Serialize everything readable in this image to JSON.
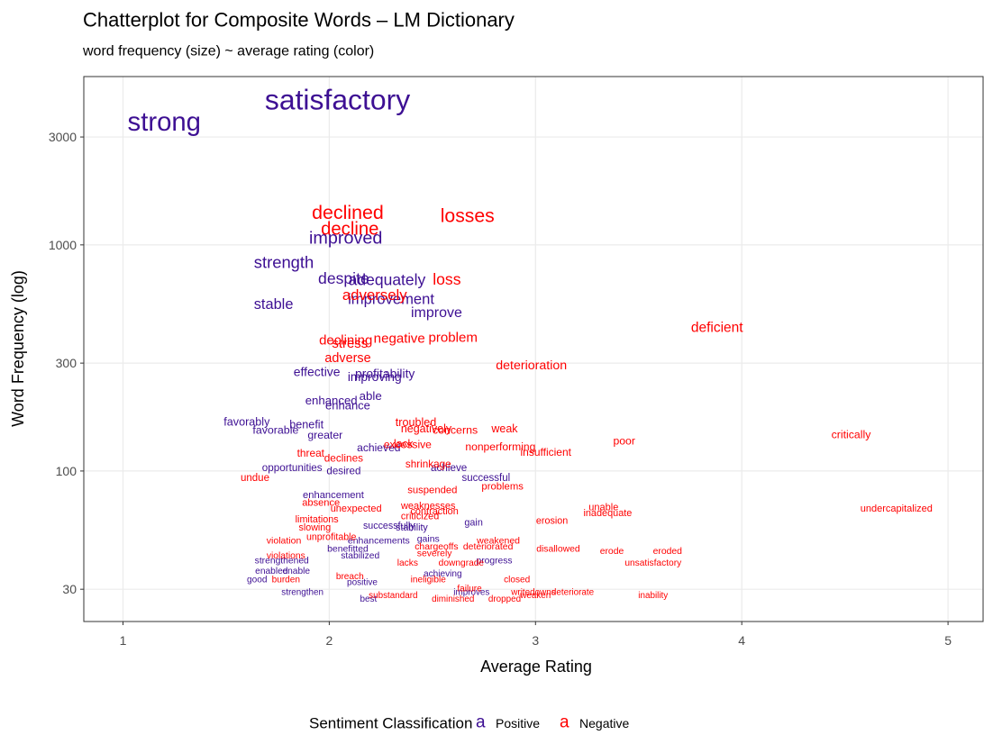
{
  "chart_data": {
    "type": "text-scatter",
    "title": "Chatterplot for Composite Words – LM Dictionary",
    "subtitle": "word frequency (size) ~ average rating (color)",
    "x_label": "Average Rating",
    "y_label": "Word Frequency (log)",
    "legend_title": "Sentiment Classification",
    "legend_symbol": "a",
    "legend_position": "bottom",
    "xlim": [
      0.81,
      5.17
    ],
    "xticks": [
      1,
      2,
      3,
      4,
      5
    ],
    "ylim": [
      21.6,
      5550
    ],
    "yticks": [
      30,
      100,
      300,
      1000,
      3000
    ],
    "log_y": true,
    "grid": true,
    "series": [
      {
        "name": "Positive",
        "color": "#3d0f93",
        "words": [
          "strong",
          "satisfactory",
          "improved",
          "strength",
          "despite",
          "adequately",
          "improvement",
          "stable",
          "improve",
          "effective",
          "profitability",
          "improving",
          "able",
          "enhanced",
          "enhance",
          "favorably",
          "benefit",
          "favorable",
          "greater",
          "achieved",
          "opportunities",
          "desired",
          "achieve",
          "successful",
          "enhancement",
          "successfully",
          "gain",
          "stability",
          "gains",
          "enhancements",
          "benefitted",
          "stabilized",
          "strengthened",
          "progress",
          "enabled",
          "enable",
          "achieving",
          "good",
          "positive",
          "strengthen",
          "improves",
          "best"
        ],
        "x": [
          1.2,
          2.04,
          2.08,
          1.78,
          2.07,
          2.28,
          2.3,
          1.73,
          2.52,
          1.94,
          2.27,
          2.22,
          2.2,
          2.01,
          2.09,
          1.6,
          1.89,
          1.74,
          1.98,
          2.24,
          1.82,
          2.07,
          2.58,
          2.76,
          2.02,
          2.29,
          2.7,
          2.4,
          2.48,
          2.24,
          2.09,
          2.15,
          1.77,
          2.8,
          1.72,
          1.84,
          2.55,
          1.65,
          2.16,
          1.87,
          2.69,
          2.19
        ],
        "values": [
          3500,
          4400,
          1070,
          840,
          710,
          700,
          575,
          545,
          500,
          275,
          270,
          260,
          215,
          205,
          195,
          165,
          160,
          152,
          144,
          127,
          103,
          100,
          103,
          93,
          78,
          57,
          59,
          56,
          50,
          49,
          45,
          42,
          40,
          40,
          36,
          36,
          35,
          33,
          32,
          29,
          29,
          27
        ]
      },
      {
        "name": "Negative",
        "color": "#ff0000",
        "words": [
          "declined",
          "decline",
          "losses",
          "loss",
          "adversely",
          "deficient",
          "declining",
          "negative",
          "problem",
          "stress",
          "adverse",
          "deterioration",
          "troubled",
          "negatively",
          "concerns",
          "weak",
          "critically",
          "poor",
          "lack",
          "excessive",
          "nonperforming",
          "insufficient",
          "threat",
          "declines",
          "shrinkage",
          "undue",
          "problems",
          "suspended",
          "absence",
          "weaknesses",
          "unable",
          "inadequate",
          "undercapitalized",
          "unexpected",
          "contraction",
          "criticized",
          "limitations",
          "erosion",
          "slowing",
          "unprofitable",
          "weakened",
          "violation",
          "chargeoffs",
          "deteriorated",
          "disallowed",
          "erode",
          "eroded",
          "severely",
          "violations",
          "lacks",
          "downgrade",
          "unsatisfactory",
          "breach",
          "burden",
          "closed",
          "ineligible",
          "failure",
          "substandard",
          "writedowns",
          "weaken",
          "deteriorate",
          "inability",
          "diminished",
          "dropped"
        ],
        "x": [
          2.09,
          2.1,
          2.67,
          2.57,
          2.22,
          3.88,
          2.08,
          2.34,
          2.6,
          2.1,
          2.09,
          2.98,
          2.42,
          2.47,
          2.61,
          2.85,
          4.53,
          3.43,
          2.36,
          2.38,
          2.83,
          3.05,
          1.91,
          2.07,
          2.48,
          1.64,
          2.84,
          2.5,
          1.96,
          2.48,
          3.33,
          3.35,
          4.75,
          2.13,
          2.51,
          2.44,
          1.94,
          3.08,
          1.93,
          2.01,
          2.82,
          1.78,
          2.52,
          2.77,
          3.11,
          3.37,
          3.64,
          2.51,
          1.79,
          2.38,
          2.64,
          3.57,
          2.1,
          1.79,
          2.91,
          2.48,
          2.68,
          2.31,
          2.99,
          3.0,
          3.18,
          3.57,
          2.6,
          2.85
        ],
        "values": [
          1390,
          1170,
          1340,
          705,
          600,
          430,
          377,
          384,
          388,
          364,
          314,
          292,
          164,
          154,
          152,
          154,
          145,
          136,
          132,
          131,
          128,
          121,
          120,
          114,
          107,
          93,
          85,
          82,
          72,
          70,
          69,
          65,
          68,
          68,
          66,
          63,
          61,
          60,
          56,
          51,
          49,
          49,
          46,
          46,
          45,
          44,
          44,
          43,
          42,
          39,
          39,
          39,
          34,
          33,
          33,
          33,
          30,
          28,
          29,
          28,
          29,
          28,
          27,
          27
        ]
      }
    ]
  }
}
